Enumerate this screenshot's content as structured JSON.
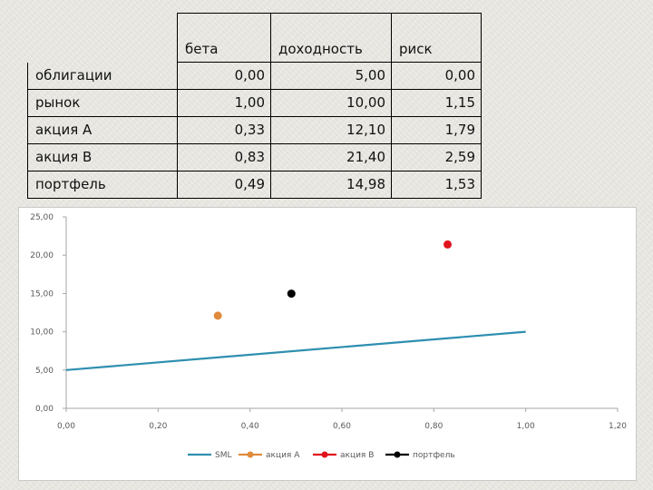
{
  "table": {
    "headers": [
      "бета",
      "доходность",
      "риск"
    ],
    "rows": [
      {
        "name": "облигации",
        "beta": "0,00",
        "return": "5,00",
        "risk": "0,00"
      },
      {
        "name": "рынок",
        "beta": "1,00",
        "return": "10,00",
        "risk": "1,15"
      },
      {
        "name": "акция А",
        "beta": "0,33",
        "return": "12,10",
        "risk": "1,79"
      },
      {
        "name": "акция В",
        "beta": "0,83",
        "return": "21,40",
        "risk": "2,59"
      },
      {
        "name": "портфель",
        "beta": "0,49",
        "return": "14,98",
        "risk": "1,53"
      }
    ]
  },
  "chart_data": {
    "type": "scatter",
    "xlim": [
      0,
      1.2
    ],
    "ylim": [
      0,
      25
    ],
    "x_ticks": [
      "0,00",
      "0,20",
      "0,40",
      "0,60",
      "0,80",
      "1,00",
      "1,20"
    ],
    "y_ticks": [
      "0,00",
      "5,00",
      "10,00",
      "15,00",
      "20,00",
      "25,00"
    ],
    "grid": false,
    "legend_position": "bottom",
    "series": [
      {
        "name": "SML",
        "kind": "line",
        "color": "#2e8fb0",
        "points": [
          [
            0.0,
            5.0
          ],
          [
            1.0,
            10.0
          ]
        ]
      },
      {
        "name": "акция А",
        "kind": "marker",
        "color": "#e08a3c",
        "points": [
          [
            0.33,
            12.1
          ]
        ]
      },
      {
        "name": "акция В",
        "kind": "marker",
        "color": "#e0141e",
        "points": [
          [
            0.83,
            21.4
          ]
        ]
      },
      {
        "name": "портфель",
        "kind": "marker",
        "color": "#000000",
        "points": [
          [
            0.49,
            14.98
          ]
        ]
      }
    ]
  }
}
